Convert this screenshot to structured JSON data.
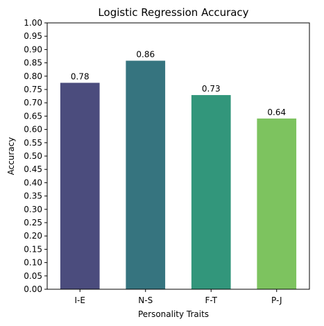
{
  "chart_data": {
    "type": "bar",
    "title": "Logistic Regression Accuracy",
    "xlabel": "Personality Traits",
    "ylabel": "Accuracy",
    "categories": [
      "I-E",
      "N-S",
      "F-T",
      "P-J"
    ],
    "values": [
      0.775,
      0.858,
      0.729,
      0.641
    ],
    "data_labels": [
      "0.78",
      "0.86",
      "0.73",
      "0.64"
    ],
    "colors": [
      "#4b4c7d",
      "#36747f",
      "#32967b",
      "#7dc35f"
    ],
    "ylim": [
      0,
      1.0
    ],
    "ytick_step": 0.05,
    "grid": false,
    "legend": "none"
  }
}
